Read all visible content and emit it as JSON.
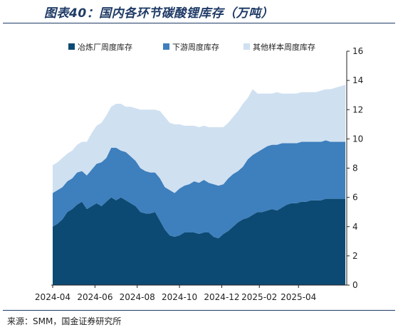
{
  "title": "图表40：国内各环节碳酸锂库存（万吨）",
  "source": "来源：SMM，国金证券研究所",
  "chart_data": {
    "type": "area",
    "stacked": true,
    "title": "图表40：国内各环节碳酸锂库存（万吨）",
    "xlabel": "",
    "ylabel": "",
    "ylim": [
      0,
      16
    ],
    "yticks": [
      0,
      2,
      4,
      6,
      8,
      10,
      12,
      14,
      16
    ],
    "y_axis_position": "right",
    "legend_position": "top",
    "grid": false,
    "x_tick_labels": [
      "2024-04",
      "2024-06",
      "2024-08",
      "2024-10",
      "2024-12",
      "2025-02",
      "2025-04"
    ],
    "x_tick_positions": [
      0,
      8.67,
      17.33,
      26.0,
      34.67,
      42.37,
      50.4
    ],
    "x": [
      0,
      1,
      2,
      3,
      4,
      5,
      6,
      7,
      8,
      9,
      10,
      11,
      12,
      13,
      14,
      15,
      16,
      17,
      18,
      19,
      20,
      21,
      22,
      23,
      24,
      25,
      26,
      27,
      28,
      29,
      30,
      31,
      32,
      33,
      34,
      35,
      36,
      37,
      38,
      39,
      40,
      41,
      42,
      43,
      44,
      45,
      46,
      47,
      48,
      49,
      50,
      51,
      52,
      53,
      54,
      55,
      56,
      57,
      58,
      59,
      60
    ],
    "series": [
      {
        "name": "冶炼厂周度库存",
        "color": "#0d4a73",
        "values": [
          4.0,
          4.2,
          4.5,
          5.0,
          5.2,
          5.5,
          5.7,
          5.2,
          5.4,
          5.6,
          5.4,
          5.7,
          6.0,
          5.8,
          6.0,
          5.8,
          5.6,
          5.4,
          5.0,
          4.9,
          4.9,
          5.0,
          4.4,
          3.8,
          3.4,
          3.3,
          3.4,
          3.6,
          3.6,
          3.6,
          3.5,
          3.6,
          3.6,
          3.3,
          3.2,
          3.5,
          3.7,
          4.0,
          4.3,
          4.5,
          4.6,
          4.8,
          5.0,
          5.0,
          5.1,
          5.2,
          5.1,
          5.3,
          5.5,
          5.6,
          5.6,
          5.7,
          5.7,
          5.8,
          5.8,
          5.8,
          5.9,
          5.9,
          5.9,
          5.9,
          5.9
        ]
      },
      {
        "name": "下游周度库存",
        "color": "#3e7fbd",
        "values": [
          2.3,
          2.3,
          2.2,
          2.1,
          2.1,
          2.2,
          2.1,
          2.3,
          2.5,
          2.7,
          3.0,
          3.0,
          3.4,
          3.6,
          3.2,
          3.3,
          3.2,
          3.1,
          3.0,
          2.9,
          2.8,
          2.7,
          2.9,
          2.9,
          3.1,
          3.0,
          3.2,
          3.2,
          3.3,
          3.5,
          3.5,
          3.6,
          3.4,
          3.6,
          3.6,
          3.4,
          3.6,
          3.6,
          3.5,
          3.6,
          4.0,
          4.1,
          4.1,
          4.3,
          4.4,
          4.4,
          4.5,
          4.4,
          4.2,
          4.1,
          4.1,
          4.1,
          4.1,
          4.0,
          4.0,
          4.0,
          4.0,
          3.9,
          3.9,
          3.9,
          3.9
        ]
      },
      {
        "name": "其他样本周度库存",
        "color": "#cfe0f1",
        "values": [
          1.9,
          1.9,
          2.0,
          1.9,
          1.9,
          1.9,
          2.0,
          2.3,
          2.5,
          2.6,
          2.7,
          2.9,
          2.8,
          3.0,
          3.2,
          3.1,
          3.4,
          3.6,
          4.0,
          4.2,
          4.3,
          4.3,
          4.6,
          4.8,
          4.6,
          4.7,
          4.4,
          4.1,
          4.0,
          3.8,
          3.8,
          3.7,
          3.8,
          3.9,
          4.0,
          3.9,
          3.8,
          3.9,
          4.1,
          4.3,
          4.2,
          4.5,
          4.0,
          3.8,
          3.6,
          3.5,
          3.6,
          3.4,
          3.4,
          3.4,
          3.4,
          3.4,
          3.4,
          3.4,
          3.4,
          3.5,
          3.5,
          3.6,
          3.7,
          3.8,
          3.9
        ]
      }
    ]
  }
}
